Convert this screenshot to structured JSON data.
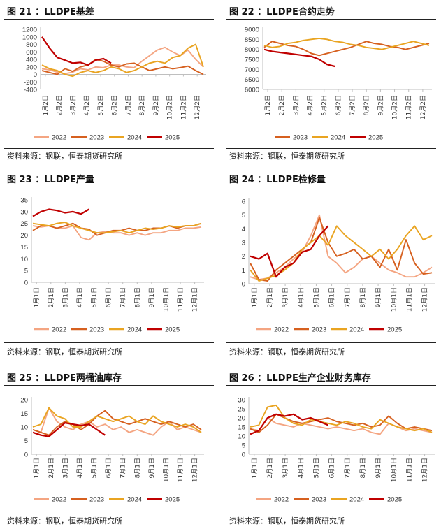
{
  "colors": {
    "2022": "#F4A582",
    "2023": "#D6601F",
    "2024": "#E9A421",
    "2025": "#C00000",
    "axis": "#BFBFBF"
  },
  "month_labels": [
    "1月1日",
    "2月1日",
    "3月1日",
    "4月1日",
    "5月1日",
    "6月1日",
    "7月1日",
    "8月1日",
    "9月1日",
    "10月1日",
    "11月1日",
    "12月1日"
  ],
  "chart_data": [
    {
      "type": "line",
      "id": "fig21",
      "title": "图 21 ：LLDPE基差",
      "source": "资料来源：钢联，恒泰期货研究所",
      "xlabels": [
        "1月2日",
        "2月2日",
        "3月2日",
        "4月2日",
        "5月2日",
        "6月2日",
        "7月2日",
        "8月2日",
        "9月2日",
        "10月2日",
        "11月2日",
        "12月2日"
      ],
      "yticks": [
        -400,
        -200,
        0,
        200,
        400,
        600,
        800,
        1000,
        1200
      ],
      "ylim": [
        -400,
        1200
      ],
      "series": [
        {
          "name": "2022",
          "values": [
            150,
            120,
            60,
            20,
            60,
            150,
            120,
            200,
            180,
            250,
            250,
            200,
            180,
            350,
            500,
            650,
            720,
            600,
            500,
            650,
            400,
            200
          ]
        },
        {
          "name": "2023",
          "values": [
            100,
            50,
            0,
            150,
            80,
            200,
            250,
            400,
            350,
            250,
            200,
            280,
            300,
            200,
            100,
            150,
            200,
            150,
            180,
            220,
            100,
            0
          ]
        },
        {
          "name": "2024",
          "values": [
            250,
            150,
            100,
            0,
            -50,
            50,
            100,
            50,
            100,
            200,
            150,
            50,
            100,
            200,
            300,
            350,
            300,
            450,
            500,
            700,
            800,
            200
          ]
        },
        {
          "name": "2025",
          "values": [
            1000,
            700,
            450,
            380,
            300,
            320,
            250,
            380,
            420,
            300
          ]
        }
      ]
    },
    {
      "type": "line",
      "id": "fig22",
      "title": "图 22 ：LLDPE合约走势",
      "source": "资料来源：钢联，恒泰期货研究所",
      "xlabels": [
        "1月2日",
        "2月2日",
        "3月2日",
        "4月2日",
        "5月2日",
        "6月2日",
        "7月2日",
        "8月2日",
        "9月2日",
        "10月2日",
        "11月2日",
        "12月2日"
      ],
      "yticks": [
        6000,
        6500,
        7000,
        7500,
        8000,
        8500,
        9000
      ],
      "ylim": [
        6000,
        9000
      ],
      "series": [
        {
          "name": "2023",
          "values": [
            8100,
            8400,
            8300,
            8200,
            8150,
            8000,
            7800,
            7700,
            7800,
            7900,
            8000,
            8100,
            8250,
            8400,
            8300,
            8250,
            8150,
            8100,
            8000,
            8100,
            8200,
            8300
          ]
        },
        {
          "name": "2024",
          "values": [
            8200,
            8100,
            8150,
            8300,
            8350,
            8450,
            8500,
            8550,
            8500,
            8400,
            8350,
            8250,
            8200,
            8100,
            8050,
            8000,
            8100,
            8200,
            8300,
            8400,
            8300,
            8200
          ]
        },
        {
          "name": "2025",
          "values": [
            8000,
            7900,
            7850,
            7800,
            7750,
            7700,
            7650,
            7500,
            7250,
            7150
          ]
        }
      ]
    },
    {
      "type": "line",
      "id": "fig23",
      "title": "图 23 ：LLDPE产量",
      "source": "资料来源：钢联，恒泰期货研究所",
      "xlabels": [
        "1月1日",
        "2月1日",
        "3月1日",
        "4月1日",
        "5月1日",
        "6月1日",
        "7月1日",
        "8月1日",
        "9月1日",
        "10月1日",
        "11月1日",
        "12月1日"
      ],
      "yticks": [
        0,
        5,
        10,
        15,
        20,
        25,
        30,
        35
      ],
      "ylim": [
        0,
        35
      ],
      "series": [
        {
          "name": "2022",
          "values": [
            24,
            23.5,
            24,
            23,
            23,
            24,
            19,
            18,
            21,
            21.5,
            21,
            21,
            20,
            21,
            20,
            21,
            21,
            22,
            22,
            23,
            23,
            23.5
          ]
        },
        {
          "name": "2023",
          "values": [
            22,
            24,
            24,
            23,
            24,
            25,
            23,
            22.5,
            20,
            21,
            22,
            22,
            23,
            22,
            22,
            23,
            23,
            24,
            23,
            24,
            24,
            25
          ]
        },
        {
          "name": "2024",
          "values": [
            25,
            24.5,
            24,
            25,
            25.5,
            24,
            23,
            22,
            21,
            21,
            21.5,
            22,
            21,
            22,
            23,
            22.5,
            23,
            24,
            23.5,
            24,
            24,
            25
          ]
        },
        {
          "name": "2025",
          "values": [
            28,
            30,
            31,
            30.5,
            29.5,
            30,
            29,
            31
          ]
        }
      ]
    },
    {
      "type": "line",
      "id": "fig24",
      "title": "图 24 ：LLDPE检修量",
      "source": "资料来源：钢联，恒泰期货研究所",
      "xlabels": [
        "1月1日",
        "2月1日",
        "3月1日",
        "4月1日",
        "5月1日",
        "6月1日",
        "7月1日",
        "8月1日",
        "9月1日",
        "10月1日",
        "11月1日",
        "12月1日"
      ],
      "yticks": [
        0,
        1,
        2,
        3,
        4,
        5,
        6
      ],
      "ylim": [
        0,
        6
      ],
      "series": [
        {
          "name": "2022",
          "values": [
            0.5,
            0.3,
            0.4,
            0.8,
            1.2,
            1.8,
            2.3,
            3.5,
            5.0,
            2.0,
            1.5,
            0.8,
            1.2,
            1.8,
            2.0,
            1.5,
            1.0,
            0.8,
            0.5,
            0.5,
            0.8,
            1.2
          ]
        },
        {
          "name": "2023",
          "values": [
            1.5,
            0.3,
            0.2,
            1.0,
            1.5,
            2.0,
            2.5,
            3.0,
            4.8,
            3.0,
            2.0,
            2.2,
            2.5,
            1.8,
            2.0,
            1.2,
            2.5,
            1.0,
            3.2,
            1.5,
            0.7,
            0.8
          ]
        },
        {
          "name": "2024",
          "values": [
            1.0,
            0.2,
            0.4,
            0.6,
            1.0,
            1.5,
            2.5,
            3.0,
            3.5,
            2.8,
            4.2,
            3.5,
            3.0,
            2.5,
            2.0,
            2.5,
            1.8,
            2.5,
            3.5,
            4.2,
            3.2,
            3.5
          ]
        },
        {
          "name": "2025",
          "values": [
            2.0,
            1.8,
            2.2,
            0.5,
            1.2,
            1.5,
            2.3,
            2.5,
            3.5,
            4.2
          ]
        }
      ]
    },
    {
      "type": "line",
      "id": "fig25",
      "title": "图 25 ：LLDPE两桶油库存",
      "source": "资料来源：钢联，恒泰期货研究所",
      "xlabels": [
        "1月1日",
        "2月1日",
        "3月1日",
        "4月1日",
        "5月1日",
        "6月1日",
        "7月1日",
        "8月1日",
        "9月1日",
        "10月1日",
        "11月1日",
        "12月1日"
      ],
      "yticks": [
        0,
        5,
        10,
        15,
        20
      ],
      "ylim": [
        0,
        20
      ],
      "series": [
        {
          "name": "2022",
          "values": [
            9,
            8,
            17,
            12,
            10,
            9,
            11,
            12,
            10,
            11,
            9,
            10,
            8,
            9,
            8,
            7,
            10,
            12,
            9,
            10,
            9,
            8
          ]
        },
        {
          "name": "2023",
          "values": [
            9,
            8,
            7,
            10,
            12,
            11,
            9,
            11,
            14,
            16,
            13,
            12,
            11,
            12,
            13,
            12,
            11,
            12,
            11,
            10,
            11,
            9
          ]
        },
        {
          "name": "2024",
          "values": [
            10,
            11,
            17,
            14,
            13,
            10,
            10,
            12,
            14,
            13,
            12,
            13,
            14,
            12,
            11,
            14,
            12,
            11,
            10,
            11,
            10,
            8
          ]
        },
        {
          "name": "2025",
          "values": [
            8,
            7,
            6.5,
            9,
            11.5,
            11,
            10.5,
            11,
            9,
            7
          ]
        }
      ]
    },
    {
      "type": "line",
      "id": "fig26",
      "title": "图 26 ：LLDPE生产企业财务库存",
      "source": "资料来源：钢联，恒泰期货研究所",
      "xlabels": [
        "1月1日",
        "2月1日",
        "3月1日",
        "4月1日",
        "5月1日",
        "6月1日",
        "7月1日",
        "8月1日",
        "9月1日",
        "10月1日",
        "11月1日",
        "12月1日"
      ],
      "yticks": [
        0,
        5,
        10,
        15,
        20,
        25,
        30
      ],
      "ylim": [
        0,
        30
      ],
      "series": [
        {
          "name": "2022",
          "values": [
            14,
            13,
            20,
            17,
            16,
            15,
            17,
            16,
            15,
            14,
            15,
            14,
            13,
            14,
            12,
            11,
            17,
            15,
            13,
            14,
            13,
            12
          ]
        },
        {
          "name": "2023",
          "values": [
            14,
            12,
            16,
            22,
            20,
            18,
            17,
            18,
            19,
            20,
            18,
            17,
            16,
            17,
            15,
            16,
            21,
            17,
            14,
            15,
            14,
            13
          ]
        },
        {
          "name": "2024",
          "values": [
            15,
            16,
            26,
            27,
            20,
            17,
            16,
            19,
            18,
            17,
            16,
            18,
            17,
            15,
            14,
            19,
            17,
            15,
            14,
            13,
            14,
            12
          ]
        },
        {
          "name": "2025",
          "values": [
            11,
            13,
            20,
            22,
            21,
            22,
            19,
            20,
            18,
            16
          ]
        }
      ]
    }
  ]
}
